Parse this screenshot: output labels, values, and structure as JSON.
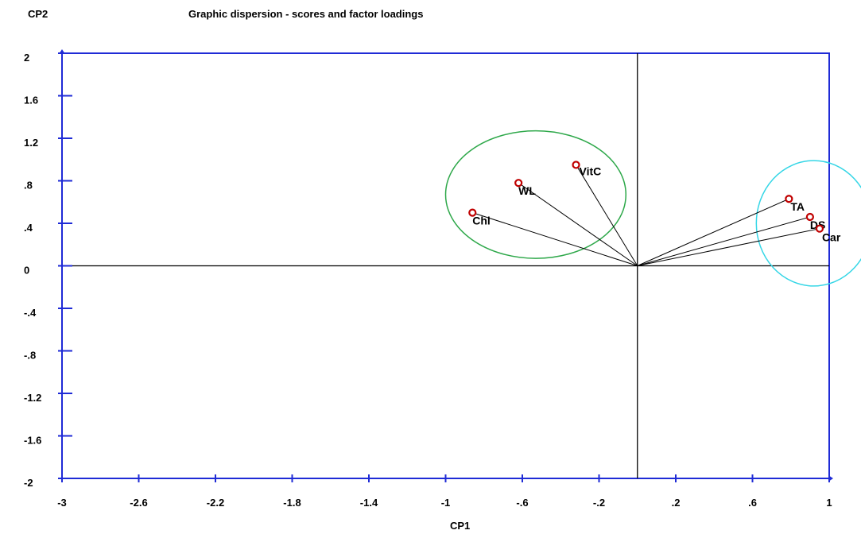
{
  "chart_data": {
    "type": "scatter",
    "title": "Graphic dispersion - scores and factor loadings",
    "xlabel": "CP1",
    "ylabel": "CP2",
    "xlim": [
      -3,
      1
    ],
    "ylim": [
      -2,
      2
    ],
    "x_ticks": [
      -3,
      -2.6,
      -2.2,
      -1.8,
      -1.4,
      -1,
      -0.6,
      -0.2,
      0.2,
      0.6,
      1
    ],
    "x_tick_labels": [
      "-3",
      "-2.6",
      "-2.2",
      "-1.8",
      "-1.4",
      "-1",
      "-.6",
      "-.2",
      ".2",
      ".6",
      "1"
    ],
    "y_ticks": [
      2,
      1.6,
      1.2,
      0.8,
      0.4,
      0,
      -0.4,
      -0.8,
      -1.2,
      -1.6,
      -2
    ],
    "y_tick_labels": [
      "2",
      "1.6",
      "1.2",
      ".8",
      ".4",
      "0",
      "-.4",
      "-.8",
      "-1.2",
      "-1.6",
      "-2"
    ],
    "points": [
      {
        "label": "VitC",
        "x": -0.32,
        "y": 0.95
      },
      {
        "label": "WL",
        "x": -0.62,
        "y": 0.78
      },
      {
        "label": "Chl",
        "x": -0.86,
        "y": 0.5
      },
      {
        "label": "TA",
        "x": 0.79,
        "y": 0.63
      },
      {
        "label": "DS",
        "x": 0.9,
        "y": 0.46
      },
      {
        "label": "Car",
        "x": 0.95,
        "y": 0.35
      }
    ],
    "groups": [
      {
        "members": [
          "VitC",
          "WL",
          "Chl"
        ],
        "cx": -0.53,
        "cy": 0.67,
        "rx": 0.47,
        "ry": 0.6,
        "color": "#2ea84a"
      },
      {
        "members": [
          "TA",
          "DS",
          "Car"
        ],
        "cx": 0.92,
        "cy": 0.4,
        "rx": 0.3,
        "ry": 0.59,
        "color": "#35d6e6"
      }
    ],
    "grid": false,
    "colors": {
      "frame": "#1f2bd6",
      "axes": "#000000",
      "point_outline": "#c00000",
      "vectors": "#000000"
    }
  }
}
